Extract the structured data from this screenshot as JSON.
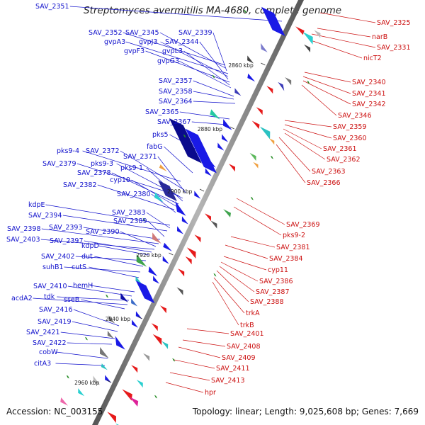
{
  "header": {
    "title": "Streptomyces avermitilis MA-4680, complete genome"
  },
  "footer": {
    "accession": "Accession: NC_003155",
    "topology": "Topology: linear; Length: 9,025,608 bp; Genes: 7,669"
  },
  "scale_ticks": [
    "2860 kbp",
    "2880 kbp",
    "2900 kbp",
    "2920 kbp",
    "2940 kbp",
    "2960 kbp"
  ],
  "left_genes": [
    "SAV_2351",
    "SAV_2352",
    "SAV_2345",
    "SAV_2339",
    "gvpA3",
    "gvpJ3",
    "SAV_2344",
    "gvpF3",
    "gvpL3",
    "gvpG3",
    "SAV_2357",
    "SAV_2358",
    "SAV_2364",
    "SAV_2365",
    "SAV_2367",
    "pks5",
    "fabG",
    "pks9-4",
    "SAV_2372",
    "SAV_2371",
    "SAV_2379",
    "pks9-3",
    "pks9-1",
    "SAV_2378",
    "cyp10",
    "SAV_2382",
    "SAV_2380",
    "kdpE",
    "SAV_2383",
    "SAV_2394",
    "SAV_2389",
    "SAV_2393",
    "SAV_2398",
    "SAV_2390",
    "SAV_2403",
    "SAV_2397",
    "kdpD",
    "SAV_2402",
    "dut",
    "suhB1",
    "cutS",
    "hemH",
    "SAV_2410",
    "tdk",
    "acdA2",
    "sseB",
    "SAV_2416",
    "SAV_2419",
    "SAV_2421",
    "SAV_2422",
    "cobW",
    "citA3"
  ],
  "right_genes": [
    "SAV_2325",
    "narB",
    "SAV_2331",
    "nicT2",
    "SAV_2340",
    "SAV_2341",
    "SAV_2342",
    "SAV_2346",
    "SAV_2359",
    "SAV_2360",
    "SAV_2361",
    "SAV_2362",
    "SAV_2363",
    "SAV_2366",
    "SAV_2369",
    "pks9-2",
    "SAV_2381",
    "SAV_2384",
    "cyp11",
    "SAV_2386",
    "SAV_2387",
    "SAV_2388",
    "trkA",
    "trkB",
    "SAV_2401",
    "SAV_2408",
    "SAV_2409",
    "SAV_2411",
    "SAV_2413",
    "hpr"
  ],
  "colors": {
    "left_label": "#1010cc",
    "right_label": "#cc1010",
    "backbone": "#888888",
    "forward_strand": "#1a1ae6",
    "reverse_strand": "#e61a1a",
    "rna_marker": "#228b22"
  }
}
